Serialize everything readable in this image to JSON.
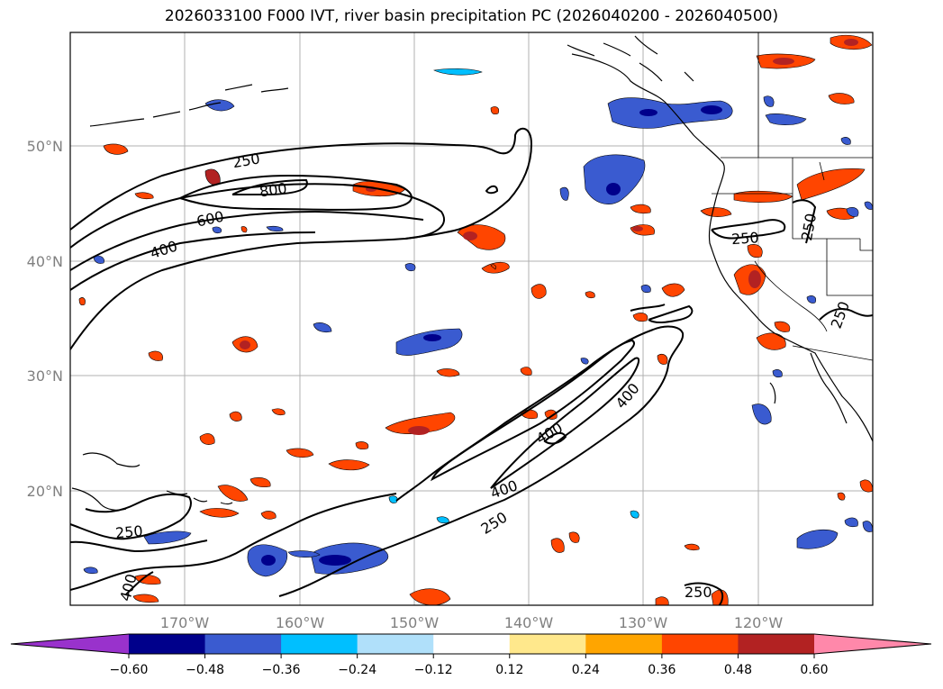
{
  "title": "2026033100 F000 IVT, river basin precipitation PC (2026040200 - 2026040500)",
  "lat_labels": [
    "50°N",
    "40°N",
    "30°N",
    "20°N"
  ],
  "lon_labels": [
    "170°W",
    "160°W",
    "150°W",
    "140°W",
    "130°W",
    "120°W"
  ],
  "contour_labels": [
    "250",
    "800",
    "600",
    "400",
    "400",
    "400",
    "400",
    "250",
    "250",
    "250",
    "250",
    "400",
    "250",
    "250"
  ],
  "colorbar": {
    "ticks": [
      "−0.60",
      "−0.48",
      "−0.36",
      "−0.24",
      "−0.12",
      "0.12",
      "0.24",
      "0.36",
      "0.48",
      "0.60"
    ],
    "colors": [
      "#9932cc",
      "#00008b",
      "#3a5bd0",
      "#00bfff",
      "#b0e0fa",
      "#ffffff",
      "#ffe88c",
      "#ffa500",
      "#ff4500",
      "#b22222",
      "#ff88aa"
    ]
  }
}
